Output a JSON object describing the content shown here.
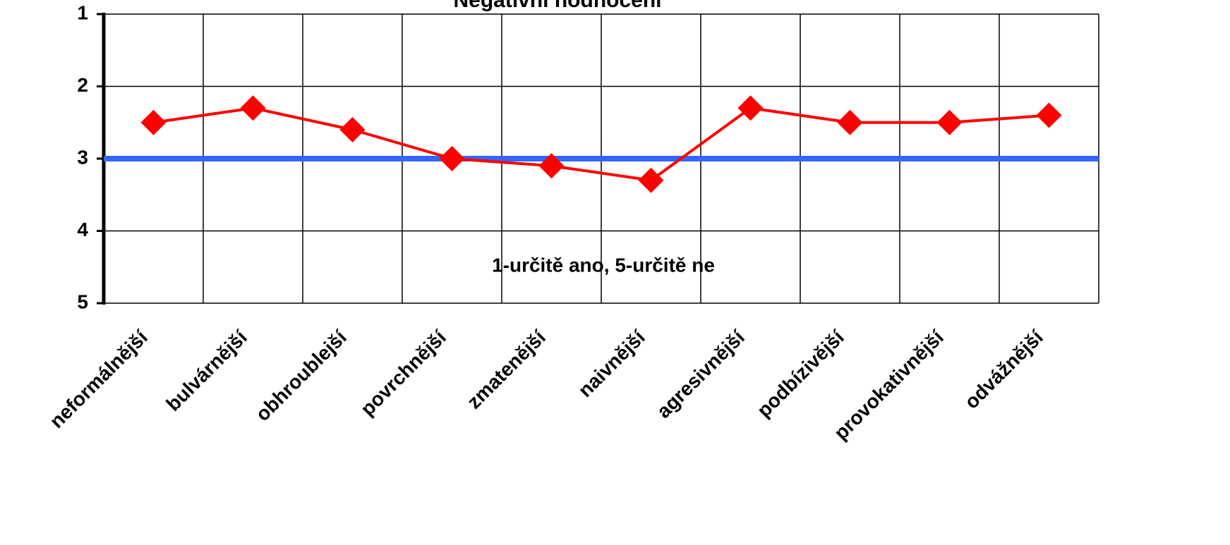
{
  "chart_data": {
    "type": "line",
    "title": "Negativní hodnocení",
    "annotation": "1-určitě ano, 5-určitě ne",
    "categories": [
      "neformálnější",
      "bulvárnější",
      "obhroublejší",
      "povrchnější",
      "zmatenější",
      "naivnější",
      "agresivnější",
      "podbízivější",
      "provokativnější",
      "odvážnější"
    ],
    "series": [
      {
        "color": "#ff0000",
        "values": [
          2.5,
          2.3,
          2.6,
          3.0,
          3.1,
          3.3,
          2.3,
          2.5,
          2.5,
          2.4
        ]
      }
    ],
    "reference_line": {
      "value": 3,
      "color": "#3366ff"
    },
    "ylim": [
      1,
      5
    ],
    "yticks": [
      1,
      2,
      3,
      4,
      5
    ],
    "y_inverted": true,
    "grid": true
  }
}
